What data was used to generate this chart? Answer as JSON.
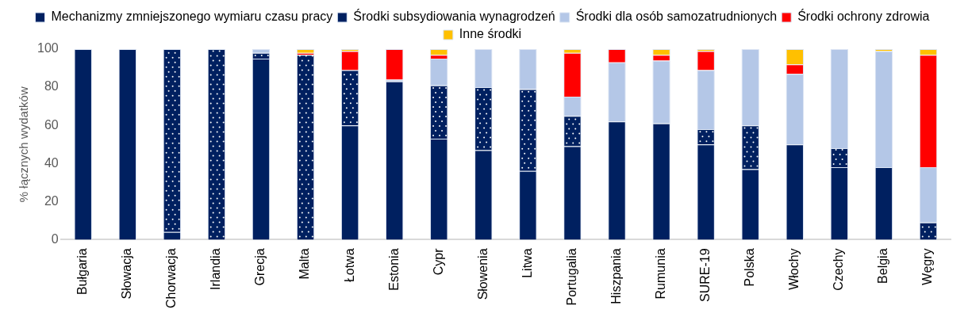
{
  "chart_data": {
    "type": "bar",
    "stacked": true,
    "ylabel": "% łącznych wydatków",
    "categories": [
      "Bułgaria",
      "Słowacja",
      "Chorwacja",
      "Irlandia",
      "Grecja",
      "Malta",
      "Łotwa",
      "Estonia",
      "Cypr",
      "Słowenia",
      "Litwa",
      "Portugalia",
      "Hiszpania",
      "Rumunia",
      "SURE-19",
      "Polska",
      "Włochy",
      "Czechy",
      "Belgia",
      "Węgry"
    ],
    "series": [
      {
        "name": "Mechanizmy zmniejszonego wymiaru czasu pracy",
        "color": "#002060",
        "values": [
          100,
          100,
          4,
          0,
          95,
          0,
          60,
          83,
          53,
          47,
          36,
          49,
          62,
          61,
          50,
          37,
          50,
          38,
          38,
          0
        ]
      },
      {
        "name": "Środki subsydiowania wynagrodzeń",
        "color": "#002060",
        "values": [
          0,
          0,
          96,
          100,
          3,
          97,
          29,
          0,
          28,
          33,
          43,
          16,
          0,
          0,
          8,
          23,
          0,
          10,
          0,
          9
        ]
      },
      {
        "name": "Środki dla osób samozatrudnionych",
        "color": "#b4c7e7",
        "values": [
          0,
          0,
          0,
          0,
          2,
          0,
          0,
          1,
          14,
          20,
          21,
          10,
          31,
          33,
          31,
          40,
          37,
          52,
          61,
          29
        ]
      },
      {
        "name": "Środki ochrony zdrowia",
        "color": "#ff0000",
        "values": [
          0,
          0,
          0,
          0,
          0,
          1,
          10,
          16,
          2,
          0,
          0,
          23,
          7,
          3,
          10,
          0,
          5,
          0,
          0,
          59
        ]
      },
      {
        "name": "Inne środki",
        "color": "#ffc000",
        "values": [
          0,
          0,
          0,
          0,
          0,
          2,
          1,
          0,
          3,
          0,
          0,
          2,
          0,
          3,
          1,
          0,
          8,
          0,
          1,
          3
        ]
      }
    ],
    "ylim": [
      0,
      100
    ],
    "yticks": [
      0,
      20,
      40,
      60,
      80,
      100
    ],
    "grid": false,
    "legend": "top"
  }
}
